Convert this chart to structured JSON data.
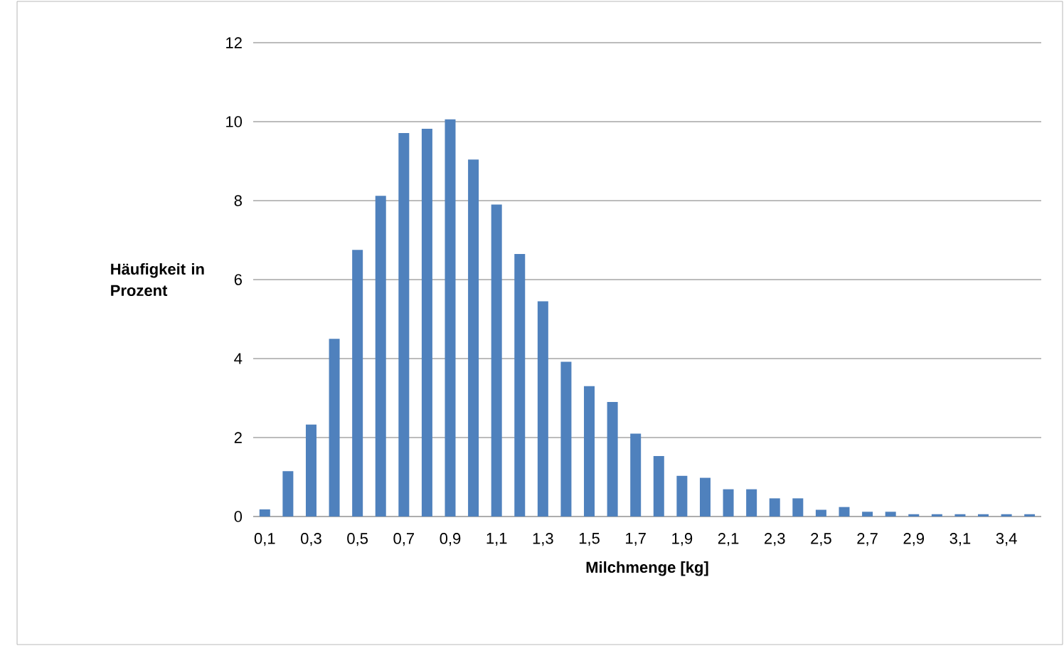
{
  "chart_data": {
    "type": "bar",
    "xlabel": "Milchmenge [kg]",
    "ylabel": "Häufigkeit in Prozent",
    "categories": [
      "0,1",
      null,
      "0,3",
      null,
      "0,5",
      null,
      "0,7",
      null,
      "0,9",
      null,
      "1,1",
      null,
      "1,3",
      null,
      "1,5",
      null,
      "1,7",
      null,
      "1,9",
      null,
      "2,1",
      null,
      "2,3",
      null,
      "2,5",
      null,
      "2,7",
      null,
      "2,9",
      null,
      "3,1",
      null,
      "3,4",
      null
    ],
    "values": [
      0.18,
      1.15,
      2.33,
      4.5,
      6.75,
      8.12,
      9.71,
      9.82,
      10.06,
      9.04,
      7.9,
      6.65,
      5.45,
      3.92,
      3.3,
      2.9,
      2.1,
      1.53,
      1.03,
      0.98,
      0.69,
      0.69,
      0.46,
      0.46,
      0.17,
      0.24,
      0.12,
      0.12,
      0.06,
      0.06,
      0.06,
      0.06,
      0.06,
      0.06
    ],
    "color": "#4f81bd",
    "ylim": [
      0,
      12
    ],
    "yticks": [
      0,
      2,
      4,
      6,
      8,
      10,
      12
    ],
    "grid": "y"
  }
}
